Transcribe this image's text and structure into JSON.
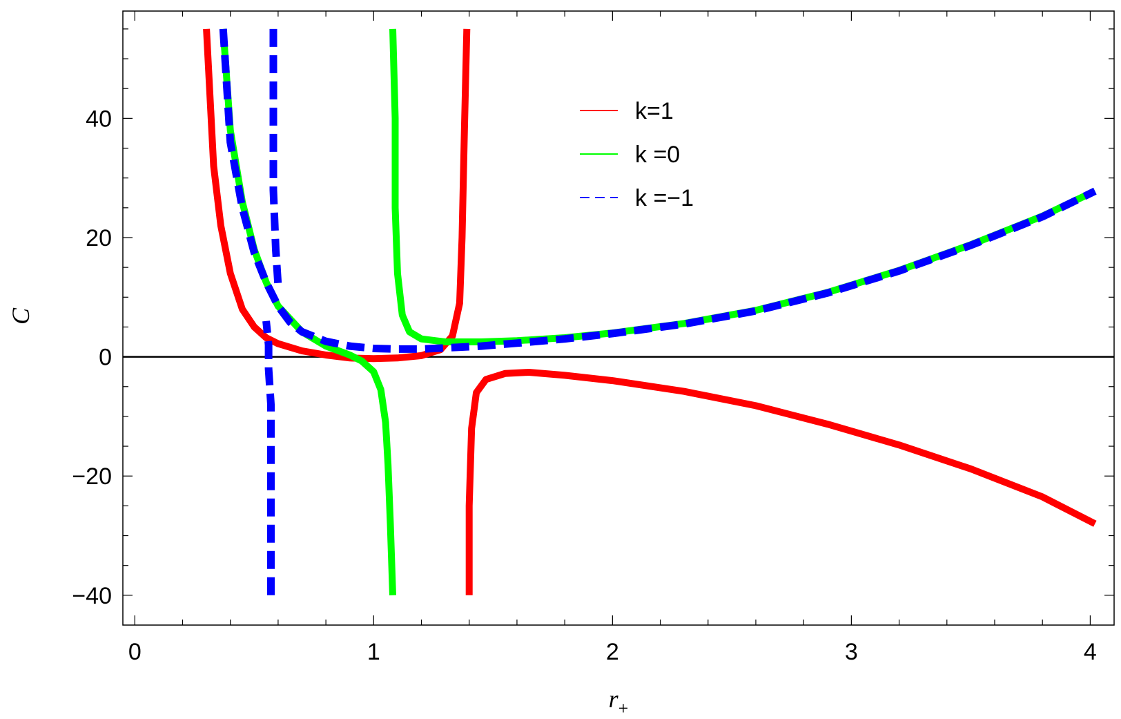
{
  "chart_data": {
    "type": "line",
    "title": "",
    "xlabel": "r",
    "xlabel_sub": "+",
    "ylabel": "C",
    "xlim": [
      -0.05,
      4.1
    ],
    "ylim": [
      -45,
      58
    ],
    "x_ticks": [
      "0",
      "1",
      "2",
      "3",
      "4"
    ],
    "y_ticks": [
      "−40",
      "−20",
      "0",
      "20",
      "40"
    ],
    "x_tick_values": [
      0,
      1,
      2,
      3,
      4
    ],
    "y_tick_values": [
      -40,
      -20,
      0,
      20,
      40
    ],
    "zero_line": true,
    "grid": false,
    "legend_position": "top-right",
    "legend": [
      {
        "label": " k=1",
        "color": "#ff0000",
        "style": "solid"
      },
      {
        "label": "k =0",
        "color": "#00ff00",
        "style": "solid"
      },
      {
        "label": "k =−1",
        "color": "#0000ff",
        "style": "dashed"
      }
    ],
    "series": [
      {
        "key": "k1",
        "color": "#ff0000",
        "style": "solid",
        "segments": [
          {
            "x": [
              0.3,
              0.33,
              0.36,
              0.4,
              0.45,
              0.5,
              0.55,
              0.6,
              0.7,
              0.8,
              0.9,
              1.0,
              1.1,
              1.2,
              1.28,
              1.33,
              1.36,
              1.37,
              1.38,
              1.39
            ],
            "y": [
              55,
              32,
              22,
              14,
              8,
              5,
              3.2,
              2.2,
              1.0,
              0.3,
              -0.2,
              -0.3,
              -0.2,
              0.2,
              1.2,
              3.5,
              9,
              20,
              38,
              55
            ]
          },
          {
            "x": [
              1.4,
              1.4,
              1.41,
              1.43,
              1.47,
              1.55,
              1.65,
              1.8,
              2.0,
              2.3,
              2.6,
              2.9,
              3.2,
              3.5,
              3.8,
              4.02
            ],
            "y": [
              -40,
              -25,
              -12,
              -6,
              -3.8,
              -2.8,
              -2.6,
              -3.1,
              -4.0,
              -5.8,
              -8.2,
              -11.3,
              -14.8,
              -18.8,
              -23.5,
              -28
            ]
          }
        ]
      },
      {
        "key": "k0",
        "color": "#00ff00",
        "style": "solid",
        "segments": [
          {
            "x": [
              0.37,
              0.4,
              0.45,
              0.5,
              0.55,
              0.6,
              0.7,
              0.8,
              0.9,
              0.95,
              1.0,
              1.03,
              1.05,
              1.06,
              1.07,
              1.08
            ],
            "y": [
              55,
              38,
              26,
              18,
              12.5,
              8.5,
              4.2,
              1.8,
              0.3,
              -0.7,
              -2.5,
              -5.5,
              -11,
              -18,
              -28,
              -40
            ]
          },
          {
            "x": [
              1.08,
              1.09,
              1.09,
              1.1,
              1.12,
              1.15,
              1.2,
              1.3,
              1.45,
              1.6,
              1.8,
              2.0,
              2.3,
              2.6,
              2.9,
              3.2,
              3.5,
              3.8,
              4.02
            ],
            "y": [
              55,
              40,
              25,
              14,
              7,
              4.2,
              3.0,
              2.5,
              2.5,
              2.7,
              3.2,
              4.0,
              5.6,
              7.8,
              10.8,
              14.5,
              18.8,
              23.6,
              27.8
            ]
          }
        ]
      },
      {
        "key": "km1",
        "color": "#0000ff",
        "style": "dashed",
        "segments": [
          {
            "x": [
              0.57,
              0.57,
              0.57,
              0.57,
              0.56,
              0.56,
              0.55
            ],
            "y": [
              -40,
              -30,
              -18,
              -8,
              -2,
              2,
              6
            ]
          },
          {
            "x": [
              0.58,
              0.58,
              0.58,
              0.59,
              0.6
            ],
            "y": [
              55,
              40,
              28,
              18,
              12
            ]
          },
          {
            "x": [
              0.37,
              0.4,
              0.45,
              0.5,
              0.55,
              0.6,
              0.65,
              0.7,
              0.8,
              0.9,
              1.0,
              1.1,
              1.2,
              1.3,
              1.45,
              1.6,
              1.8,
              2.0,
              2.3,
              2.6,
              2.9,
              3.2,
              3.5,
              3.8,
              4.02
            ],
            "y": [
              55,
              36,
              25,
              17.5,
              12.5,
              8.5,
              5.8,
              4.2,
              2.6,
              1.8,
              1.4,
              1.3,
              1.3,
              1.5,
              1.8,
              2.3,
              3.0,
              3.9,
              5.5,
              7.7,
              10.7,
              14.4,
              18.7,
              23.5,
              27.8
            ]
          }
        ]
      }
    ]
  }
}
